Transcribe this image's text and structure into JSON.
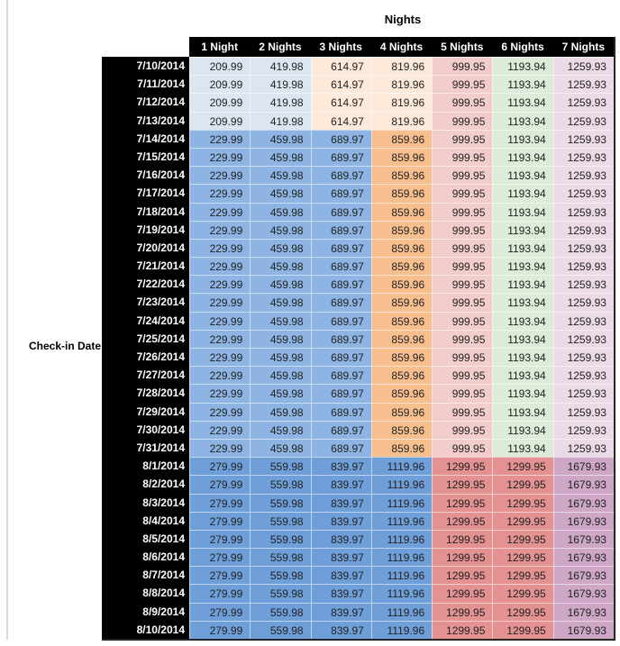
{
  "title": "Nights",
  "row_axis_label": "Check-in Date",
  "colors": {
    "header_bg": "#000000",
    "header_text": "#ffffff",
    "band_early": [
      "#dce6f1",
      "#dce6f1",
      "#fdeada",
      "#fdeada",
      "#f3cdcc",
      "#dcecd8",
      "#ecdae6"
    ],
    "band_mid": [
      "#8db4e2",
      "#8db4e2",
      "#8db4e2",
      "#f8bf8e",
      "#f3cdcc",
      "#dcecd8",
      "#ecdae6"
    ],
    "band_late": [
      "#6f9fd9",
      "#6f9fd9",
      "#6f9fd9",
      "#6f9fd9",
      "#e39291",
      "#e39291",
      "#cda7c5"
    ],
    "gutter_line": "#d9d9d9"
  },
  "chart_data": {
    "type": "table",
    "title": "Nights",
    "row_axis_label": "Check-in Date",
    "columns": [
      "1 Night",
      "2 Nights",
      "3 Nights",
      "4 Nights",
      "5 Nights",
      "6 Nights",
      "7 Nights"
    ],
    "rows": [
      {
        "date": "7/10/2014",
        "band": "band_early",
        "values": [
          209.99,
          419.98,
          614.97,
          819.96,
          999.95,
          1193.94,
          1259.93
        ]
      },
      {
        "date": "7/11/2014",
        "band": "band_early",
        "values": [
          209.99,
          419.98,
          614.97,
          819.96,
          999.95,
          1193.94,
          1259.93
        ]
      },
      {
        "date": "7/12/2014",
        "band": "band_early",
        "values": [
          209.99,
          419.98,
          614.97,
          819.96,
          999.95,
          1193.94,
          1259.93
        ]
      },
      {
        "date": "7/13/2014",
        "band": "band_early",
        "values": [
          209.99,
          419.98,
          614.97,
          819.96,
          999.95,
          1193.94,
          1259.93
        ]
      },
      {
        "date": "7/14/2014",
        "band": "band_mid",
        "values": [
          229.99,
          459.98,
          689.97,
          859.96,
          999.95,
          1193.94,
          1259.93
        ]
      },
      {
        "date": "7/15/2014",
        "band": "band_mid",
        "values": [
          229.99,
          459.98,
          689.97,
          859.96,
          999.95,
          1193.94,
          1259.93
        ]
      },
      {
        "date": "7/16/2014",
        "band": "band_mid",
        "values": [
          229.99,
          459.98,
          689.97,
          859.96,
          999.95,
          1193.94,
          1259.93
        ]
      },
      {
        "date": "7/17/2014",
        "band": "band_mid",
        "values": [
          229.99,
          459.98,
          689.97,
          859.96,
          999.95,
          1193.94,
          1259.93
        ]
      },
      {
        "date": "7/18/2014",
        "band": "band_mid",
        "values": [
          229.99,
          459.98,
          689.97,
          859.96,
          999.95,
          1193.94,
          1259.93
        ]
      },
      {
        "date": "7/19/2014",
        "band": "band_mid",
        "values": [
          229.99,
          459.98,
          689.97,
          859.96,
          999.95,
          1193.94,
          1259.93
        ]
      },
      {
        "date": "7/20/2014",
        "band": "band_mid",
        "values": [
          229.99,
          459.98,
          689.97,
          859.96,
          999.95,
          1193.94,
          1259.93
        ]
      },
      {
        "date": "7/21/2014",
        "band": "band_mid",
        "values": [
          229.99,
          459.98,
          689.97,
          859.96,
          999.95,
          1193.94,
          1259.93
        ]
      },
      {
        "date": "7/22/2014",
        "band": "band_mid",
        "values": [
          229.99,
          459.98,
          689.97,
          859.96,
          999.95,
          1193.94,
          1259.93
        ]
      },
      {
        "date": "7/23/2014",
        "band": "band_mid",
        "values": [
          229.99,
          459.98,
          689.97,
          859.96,
          999.95,
          1193.94,
          1259.93
        ]
      },
      {
        "date": "7/24/2014",
        "band": "band_mid",
        "values": [
          229.99,
          459.98,
          689.97,
          859.96,
          999.95,
          1193.94,
          1259.93
        ]
      },
      {
        "date": "7/25/2014",
        "band": "band_mid",
        "values": [
          229.99,
          459.98,
          689.97,
          859.96,
          999.95,
          1193.94,
          1259.93
        ]
      },
      {
        "date": "7/26/2014",
        "band": "band_mid",
        "values": [
          229.99,
          459.98,
          689.97,
          859.96,
          999.95,
          1193.94,
          1259.93
        ]
      },
      {
        "date": "7/27/2014",
        "band": "band_mid",
        "values": [
          229.99,
          459.98,
          689.97,
          859.96,
          999.95,
          1193.94,
          1259.93
        ]
      },
      {
        "date": "7/28/2014",
        "band": "band_mid",
        "values": [
          229.99,
          459.98,
          689.97,
          859.96,
          999.95,
          1193.94,
          1259.93
        ]
      },
      {
        "date": "7/29/2014",
        "band": "band_mid",
        "values": [
          229.99,
          459.98,
          689.97,
          859.96,
          999.95,
          1193.94,
          1259.93
        ]
      },
      {
        "date": "7/30/2014",
        "band": "band_mid",
        "values": [
          229.99,
          459.98,
          689.97,
          859.96,
          999.95,
          1193.94,
          1259.93
        ]
      },
      {
        "date": "7/31/2014",
        "band": "band_mid",
        "values": [
          229.99,
          459.98,
          689.97,
          859.96,
          999.95,
          1193.94,
          1259.93
        ]
      },
      {
        "date": "8/1/2014",
        "band": "band_late",
        "values": [
          279.99,
          559.98,
          839.97,
          1119.96,
          1299.95,
          1299.95,
          1679.93
        ]
      },
      {
        "date": "8/2/2014",
        "band": "band_late",
        "values": [
          279.99,
          559.98,
          839.97,
          1119.96,
          1299.95,
          1299.95,
          1679.93
        ]
      },
      {
        "date": "8/3/2014",
        "band": "band_late",
        "values": [
          279.99,
          559.98,
          839.97,
          1119.96,
          1299.95,
          1299.95,
          1679.93
        ]
      },
      {
        "date": "8/4/2014",
        "band": "band_late",
        "values": [
          279.99,
          559.98,
          839.97,
          1119.96,
          1299.95,
          1299.95,
          1679.93
        ]
      },
      {
        "date": "8/5/2014",
        "band": "band_late",
        "values": [
          279.99,
          559.98,
          839.97,
          1119.96,
          1299.95,
          1299.95,
          1679.93
        ]
      },
      {
        "date": "8/6/2014",
        "band": "band_late",
        "values": [
          279.99,
          559.98,
          839.97,
          1119.96,
          1299.95,
          1299.95,
          1679.93
        ]
      },
      {
        "date": "8/7/2014",
        "band": "band_late",
        "values": [
          279.99,
          559.98,
          839.97,
          1119.96,
          1299.95,
          1299.95,
          1679.93
        ]
      },
      {
        "date": "8/8/2014",
        "band": "band_late",
        "values": [
          279.99,
          559.98,
          839.97,
          1119.96,
          1299.95,
          1299.95,
          1679.93
        ]
      },
      {
        "date": "8/9/2014",
        "band": "band_late",
        "values": [
          279.99,
          559.98,
          839.97,
          1119.96,
          1299.95,
          1299.95,
          1679.93
        ]
      },
      {
        "date": "8/10/2014",
        "band": "band_late",
        "values": [
          279.99,
          559.98,
          839.97,
          1119.96,
          1299.95,
          1299.95,
          1679.93
        ]
      }
    ]
  }
}
